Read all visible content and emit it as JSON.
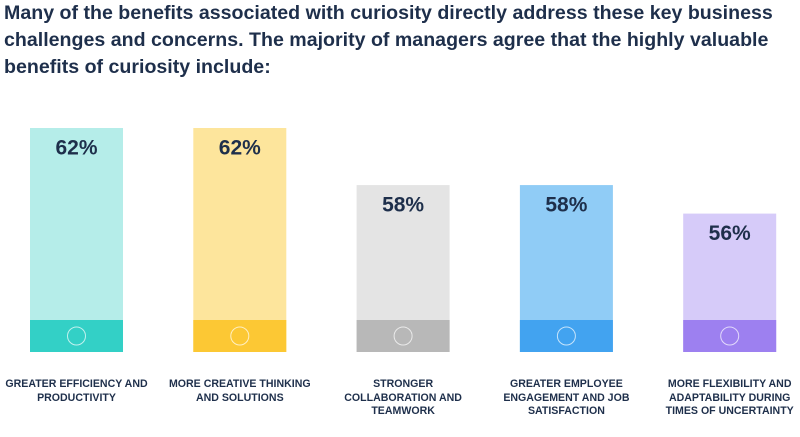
{
  "chart_data": {
    "type": "bar",
    "title": "Many of the benefits associated with curiosity directly address these key business challenges and concerns. The majority of managers agree that the highly valuable benefits of curiosity include:",
    "categories": [
      "GREATER EFFICIENCY AND PRODUCTIVITY",
      "MORE CREATIVE THINKING AND SOLUTIONS",
      "STRONGER COLLABORATION AND TEAMWORK",
      "GREATER EMPLOYEE ENGAGEMENT AND JOB SATISFACTION",
      "MORE FLEXIBILITY AND ADAPTABILITY DURING TIMES OF UNCERTAINTY"
    ],
    "values": [
      62,
      62,
      58,
      58,
      56
    ],
    "value_labels": [
      "62%",
      "62%",
      "58%",
      "58%",
      "56%"
    ],
    "colors": [
      "#b5ede9",
      "#fde59c",
      "#e4e4e4",
      "#90ccf6",
      "#d6cbf9"
    ],
    "band_colors": [
      "#33d0c6",
      "#fcc834",
      "#b8b8b8",
      "#42a3f0",
      "#9d80f0"
    ],
    "ylim": [
      46.3,
      62
    ]
  }
}
